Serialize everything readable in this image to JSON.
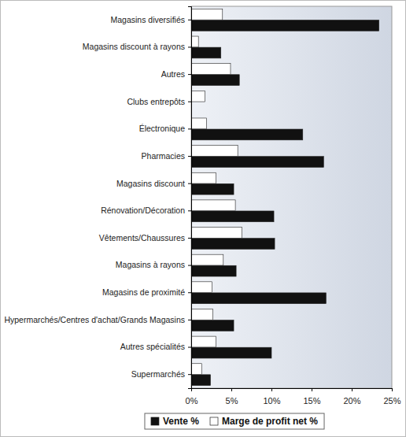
{
  "chart_data": {
    "type": "bar",
    "orientation": "horizontal",
    "categories": [
      "Magasins diversifiés",
      "Magasins discount à rayons",
      "Autres",
      "Clubs entrepôts",
      "Électronique",
      "Pharmacies",
      "Magasins discount",
      "Rénovation/Décoration",
      "Vêtements/Chaussures",
      "Magasins à rayons",
      "Magasins de proximité",
      "Hypermarchés/Centres d'achat/Grands Magasins",
      "Autres spécialités",
      "Supermarchés"
    ],
    "series": [
      {
        "name": "Vente %",
        "color": "#111111",
        "values": [
          23.4,
          3.7,
          6.0,
          0,
          13.9,
          16.5,
          5.3,
          10.3,
          10.4,
          5.6,
          16.8,
          5.3,
          10.0,
          2.4
        ]
      },
      {
        "name": "Marge de profit net %",
        "color": "#ffffff",
        "values": [
          3.9,
          0.9,
          4.9,
          1.7,
          1.9,
          5.8,
          3.1,
          5.5,
          6.3,
          4.0,
          2.6,
          2.7,
          3.1,
          1.3
        ]
      }
    ],
    "xlim": [
      0,
      25
    ],
    "xticks": [
      {
        "value": 0,
        "label": "0%"
      },
      {
        "value": 5,
        "label": "5%"
      },
      {
        "value": 10,
        "label": "10%"
      },
      {
        "value": 15,
        "label": "15%"
      },
      {
        "value": 20,
        "label": "20%"
      },
      {
        "value": 25,
        "label": "25%"
      }
    ],
    "grid": false,
    "legend": "bottom"
  }
}
